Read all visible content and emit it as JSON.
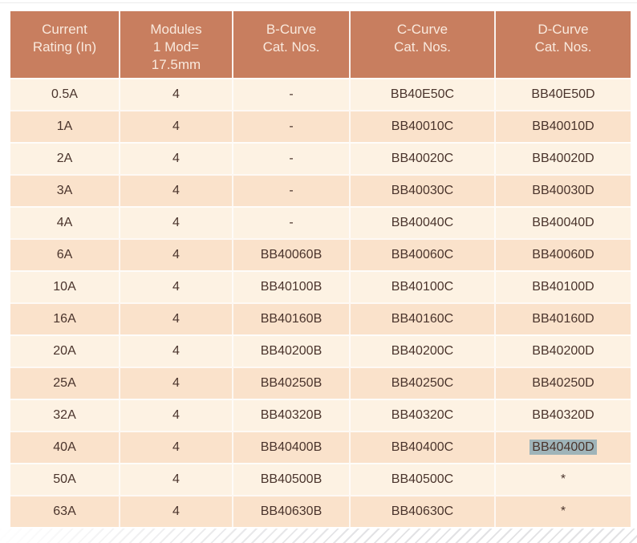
{
  "colors": {
    "header_bg": "#c87e5f",
    "header_text": "#f9e9dd",
    "row_light_bg": "#fdf2e3",
    "row_peach_bg": "#fae2cb",
    "cell_text": "#4a342c",
    "selection_highlight_bg": "#9fb4b9"
  },
  "table": {
    "columns": [
      "Current\nRating (In)",
      "Modules\n1 Mod=\n17.5mm",
      "B-Curve\nCat. Nos.",
      "C-Curve\nCat. Nos.",
      "D-Curve\nCat. Nos."
    ],
    "rows": [
      {
        "rating": "0.5A",
        "modules": "4",
        "b": "-",
        "c": "BB40E50C",
        "d": "BB40E50D"
      },
      {
        "rating": "1A",
        "modules": "4",
        "b": "-",
        "c": "BB40010C",
        "d": "BB40010D"
      },
      {
        "rating": "2A",
        "modules": "4",
        "b": "-",
        "c": "BB40020C",
        "d": "BB40020D"
      },
      {
        "rating": "3A",
        "modules": "4",
        "b": "-",
        "c": "BB40030C",
        "d": "BB40030D"
      },
      {
        "rating": "4A",
        "modules": "4",
        "b": "-",
        "c": "BB40040C",
        "d": "BB40040D"
      },
      {
        "rating": "6A",
        "modules": "4",
        "b": "BB40060B",
        "c": "BB40060C",
        "d": "BB40060D"
      },
      {
        "rating": "10A",
        "modules": "4",
        "b": "BB40100B",
        "c": "BB40100C",
        "d": "BB40100D"
      },
      {
        "rating": "16A",
        "modules": "4",
        "b": "BB40160B",
        "c": "BB40160C",
        "d": "BB40160D"
      },
      {
        "rating": "20A",
        "modules": "4",
        "b": "BB40200B",
        "c": "BB40200C",
        "d": "BB40200D"
      },
      {
        "rating": "25A",
        "modules": "4",
        "b": "BB40250B",
        "c": "BB40250C",
        "d": "BB40250D"
      },
      {
        "rating": "32A",
        "modules": "4",
        "b": "BB40320B",
        "c": "BB40320C",
        "d": "BB40320D"
      },
      {
        "rating": "40A",
        "modules": "4",
        "b": "BB40400B",
        "c": "BB40400C",
        "d": "BB40400D"
      },
      {
        "rating": "50A",
        "modules": "4",
        "b": "BB40500B",
        "c": "BB40500C",
        "d": "*"
      },
      {
        "rating": "63A",
        "modules": "4",
        "b": "BB40630B",
        "c": "BB40630C",
        "d": "*"
      }
    ],
    "highlight": {
      "row_index": 11,
      "column": "d",
      "value": "BB40400D"
    }
  }
}
